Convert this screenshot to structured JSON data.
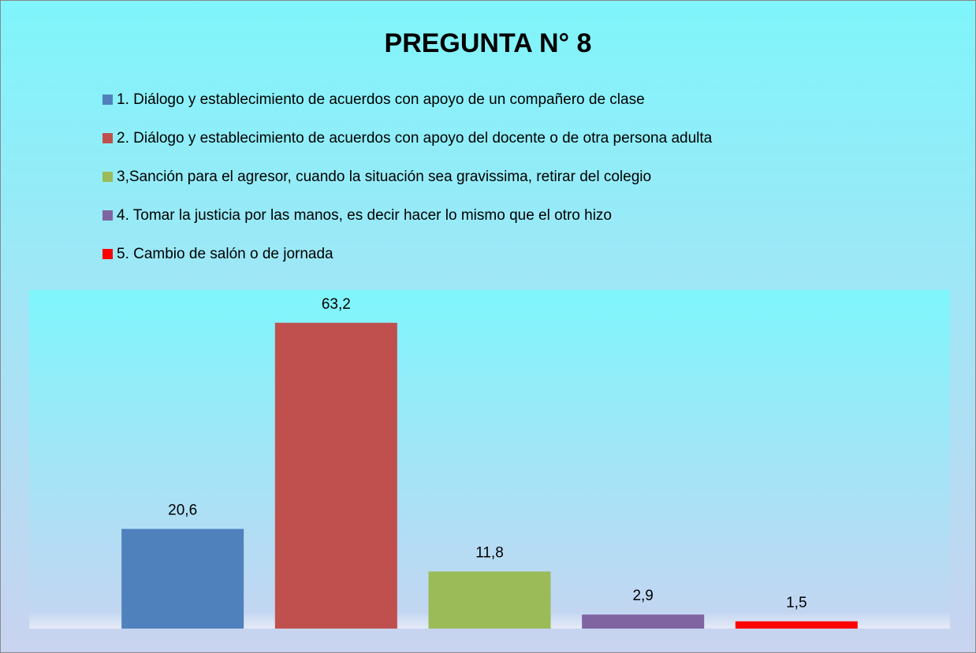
{
  "chart_data": {
    "type": "bar",
    "title": "PREGUNTA N° 8",
    "categories": [
      "1. Diálogo y establecimiento de acuerdos con apoyo de un compañero de clase",
      "2. Diálogo y establecimiento de acuerdos con apoyo del docente o de otra persona adulta",
      "3,Sanción para el agresor,  cuando la situación sea gravissima, retirar del colegio",
      "4. Tomar la justicia por las manos, es decir hacer lo mismo que el otro hizo",
      "5.  Cambio de salón o de jornada"
    ],
    "values": [
      20.6,
      63.2,
      11.8,
      2.9,
      1.5
    ],
    "value_labels": [
      "20,6",
      "63,2",
      "11,8",
      "2,9",
      "1,5"
    ],
    "colors": [
      "#4f81bd",
      "#c0504d",
      "#9bbb59",
      "#8064a2",
      "#ff0000"
    ],
    "ylim": [
      0,
      70
    ],
    "legend": "top"
  }
}
